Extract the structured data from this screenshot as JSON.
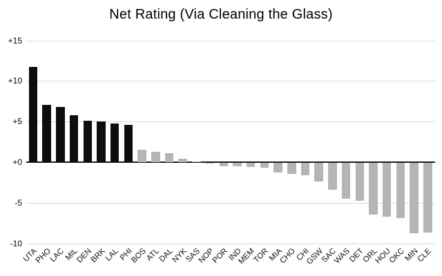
{
  "chart_data": {
    "type": "bar",
    "title": "Net Rating (Via Cleaning the Glass)",
    "xlabel": "",
    "ylabel": "",
    "ylim": [
      -10,
      15
    ],
    "grid": true,
    "legend": "none",
    "background_color": "#ffffff",
    "gridline_color": "#d9d9d9",
    "zero_line_color": "#1a1a1a",
    "bar_palette": {
      "highlight": "#0e0e0e",
      "default": "#b5b5b5"
    },
    "yticks": [
      {
        "value": 15,
        "label": "+15"
      },
      {
        "value": 10,
        "label": "+10"
      },
      {
        "value": 5,
        "label": "+5"
      },
      {
        "value": 0,
        "label": "+0"
      },
      {
        "value": -5,
        "label": "-5"
      },
      {
        "value": -10,
        "label": "-10"
      }
    ],
    "categories": [
      "UTA",
      "PHO",
      "LAC",
      "MIL",
      "DEN",
      "BRK",
      "LAL",
      "PHI",
      "BOS",
      "ATL",
      "DAL",
      "NYK",
      "SAS",
      "NOP",
      "POR",
      "IND",
      "MEM",
      "TOR",
      "MIA",
      "CHO",
      "CHI",
      "GSW",
      "SAC",
      "WAS",
      "DET",
      "ORL",
      "HOU",
      "OKC",
      "MIN",
      "CLE"
    ],
    "values": [
      11.7,
      7.1,
      6.8,
      5.8,
      5.1,
      5.0,
      4.8,
      4.6,
      1.5,
      1.3,
      1.1,
      0.4,
      0.1,
      -0.1,
      -0.4,
      -0.4,
      -0.5,
      -0.6,
      -1.2,
      -1.4,
      -1.5,
      -2.3,
      -3.3,
      -4.4,
      -4.7,
      -6.4,
      -6.6,
      -6.8,
      -8.7,
      -8.6
    ],
    "bar_colors": [
      "#0e0e0e",
      "#0e0e0e",
      "#0e0e0e",
      "#0e0e0e",
      "#0e0e0e",
      "#0e0e0e",
      "#0e0e0e",
      "#0e0e0e",
      "#b5b5b5",
      "#b5b5b5",
      "#b5b5b5",
      "#b5b5b5",
      "#b5b5b5",
      "#b5b5b5",
      "#b5b5b5",
      "#b5b5b5",
      "#b5b5b5",
      "#b5b5b5",
      "#b5b5b5",
      "#b5b5b5",
      "#b5b5b5",
      "#b5b5b5",
      "#b5b5b5",
      "#b5b5b5",
      "#b5b5b5",
      "#b5b5b5",
      "#b5b5b5",
      "#b5b5b5",
      "#b5b5b5",
      "#b5b5b5"
    ]
  }
}
